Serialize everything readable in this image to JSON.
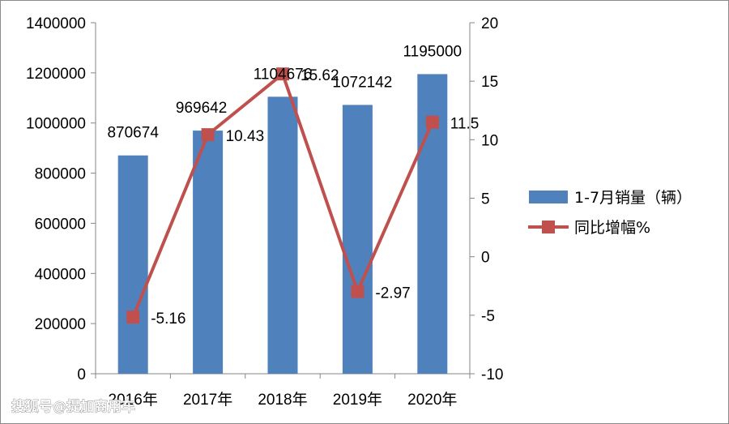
{
  "chart_data": {
    "type": "bar",
    "categories": [
      "2016年",
      "2017年",
      "2018年",
      "2019年",
      "2020年"
    ],
    "series": [
      {
        "name": "1-7月销量（辆）",
        "type": "bar",
        "axis": "left",
        "color": "#4F81BD",
        "values": [
          870674,
          969642,
          1104676,
          1072142,
          1195000
        ],
        "labels": [
          "870674",
          "969642",
          "1104676",
          "1072142",
          "1195000"
        ]
      },
      {
        "name": "同比增幅%",
        "type": "line",
        "axis": "right",
        "color": "#C0504D",
        "values": [
          -5.16,
          10.43,
          15.62,
          -2.97,
          11.5
        ],
        "labels": [
          "-5.16",
          "10.43",
          "15.62",
          "-2.97",
          "11.5"
        ]
      }
    ],
    "y_left": {
      "range": [
        0,
        1400000
      ],
      "ticks": [
        "0",
        "200000",
        "400000",
        "600000",
        "800000",
        "1000000",
        "1200000",
        "1400000"
      ]
    },
    "y_right": {
      "range": [
        -10,
        20
      ],
      "ticks": [
        "-10",
        "-5",
        "0",
        "5",
        "10",
        "15",
        "20"
      ]
    },
    "grid": false,
    "legend_position": "right"
  },
  "watermark": "搜狐号@提加商用车"
}
